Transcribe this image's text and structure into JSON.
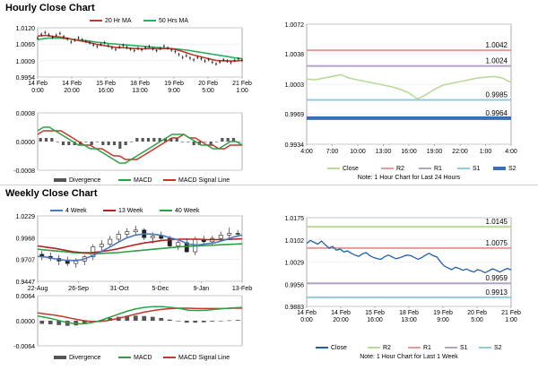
{
  "sections": {
    "hourly_title": "Hourly Close Chart",
    "weekly_title": "Weekly Close Chart"
  },
  "colors": {
    "ma20": "#c0392b",
    "ma50": "#27ae60",
    "w4": "#4a78c2",
    "w13": "#b22222",
    "w40": "#2e9e44",
    "macd": "#2ea043",
    "signal": "#c0392b",
    "divergence": "#555555",
    "close": "#b9d99a",
    "close_weekly": "#1f5fa8",
    "r2": "#e69c9c",
    "r1": "#b5a2c8",
    "s1": "#92cbe0",
    "s2": "#3a70b3"
  },
  "chart_data": [
    {
      "id": "hourly_price",
      "type": "line",
      "title": "",
      "legend": [
        "20 Hr MA",
        "50 Hrs MA"
      ],
      "yticks": [
        "1.0120",
        "1.0065",
        "1.0009",
        "0.9954"
      ],
      "yrange": [
        0.9954,
        1.012
      ],
      "xticks": [
        [
          "14 Feb",
          "0:00"
        ],
        [
          "14 Feb",
          "20:00"
        ],
        [
          "15 Feb",
          "16:00"
        ],
        [
          "18 Feb",
          "13:00"
        ],
        [
          "19 Feb",
          "9:00"
        ],
        [
          "20 Feb",
          "5:00"
        ],
        [
          "21 Feb",
          "1:00"
        ]
      ],
      "price": [
        1.0085,
        1.0098,
        1.0104,
        1.0096,
        1.0088,
        1.0095,
        1.0101,
        1.009,
        1.0082,
        1.0072,
        1.0078,
        1.0086,
        1.008,
        1.0074,
        1.0069,
        1.0062,
        1.0057,
        1.0064,
        1.007,
        1.006,
        1.0052,
        1.0047,
        1.0055,
        1.0061,
        1.0054,
        1.0048,
        1.0043,
        1.005,
        1.0046,
        1.0053,
        1.0057,
        1.0049,
        1.0043,
        1.005,
        1.0058,
        1.0052,
        1.0045,
        1.004,
        1.003,
        1.002,
        1.0026,
        1.0018,
        1.0012,
        1.002,
        1.0016,
        1.0008,
        1.0013,
        1.0004,
        0.9998,
        1.0005,
        1.0012,
        1.0008,
        1.0003,
        1.001,
        1.0015,
        1.0011
      ],
      "ma20": [
        1.0092,
        1.0093,
        1.0094,
        1.0093,
        1.0091,
        1.009,
        1.0089,
        1.0087,
        1.0085,
        1.0082,
        1.0079,
        1.0077,
        1.0075,
        1.0073,
        1.007,
        1.0067,
        1.0064,
        1.0062,
        1.006,
        1.0058,
        1.0056,
        1.0054,
        1.0053,
        1.0053,
        1.0052,
        1.0051,
        1.005,
        1.005,
        1.0049,
        1.0049,
        1.005,
        1.005,
        1.0049,
        1.0049,
        1.005,
        1.005,
        1.0049,
        1.0047,
        1.0044,
        1.004,
        1.0036,
        1.0032,
        1.0028,
        1.0025,
        1.0022,
        1.0019,
        1.0016,
        1.0013,
        1.001,
        1.0009,
        1.0009,
        1.0008,
        1.0008,
        1.0008,
        1.0009,
        1.001
      ],
      "ma50": [
        1.008,
        1.0082,
        1.0084,
        1.0085,
        1.0085,
        1.0085,
        1.0085,
        1.0084,
        1.0083,
        1.0082,
        1.008,
        1.0079,
        1.0078,
        1.0076,
        1.0075,
        1.0073,
        1.0071,
        1.007,
        1.0069,
        1.0067,
        1.0066,
        1.0065,
        1.0064,
        1.0063,
        1.0062,
        1.0061,
        1.006,
        1.0059,
        1.0058,
        1.0057,
        1.0056,
        1.0055,
        1.0054,
        1.0053,
        1.0052,
        1.0051,
        1.005,
        1.0049,
        1.0048,
        1.0046,
        1.0045,
        1.0043,
        1.0041,
        1.0039,
        1.0037,
        1.0035,
        1.0033,
        1.0031,
        1.0029,
        1.0027,
        1.0025,
        1.0023,
        1.0021,
        1.0019,
        1.0017,
        1.0016
      ]
    },
    {
      "id": "hourly_macd",
      "type": "line",
      "legend": [
        "Divergence",
        "MACD",
        "MACD Signal Line"
      ],
      "yticks": [
        "0.0008",
        "0.0000",
        "-0.0008"
      ],
      "yrange": [
        -0.0008,
        0.0008
      ],
      "macd": [
        0.0003,
        0.0004,
        0.0004,
        0.0003,
        0.0002,
        0.0001,
        0.0,
        -0.0001,
        -0.0001,
        -0.0002,
        -0.0002,
        -0.0003,
        -0.0004,
        -0.0005,
        -0.0006,
        -0.0006,
        -0.0005,
        -0.0004,
        -0.0003,
        -0.0002,
        -0.0001,
        0.0,
        0.0001,
        0.0002,
        0.0002,
        0.0002,
        0.0001,
        0.0,
        -0.0001,
        -0.0001,
        -0.0002,
        -0.0002,
        -0.0001,
        0.0,
        0.0,
        -0.0001
      ],
      "signal": [
        0.0002,
        0.0003,
        0.0003,
        0.0003,
        0.0003,
        0.0002,
        0.0001,
        0.0,
        -0.0001,
        -0.0001,
        -0.0002,
        -0.0002,
        -0.0003,
        -0.0004,
        -0.0004,
        -0.0005,
        -0.0005,
        -0.0005,
        -0.0004,
        -0.0003,
        -0.0002,
        -0.0001,
        0.0,
        0.0001,
        0.0001,
        0.0002,
        0.0001,
        0.0001,
        0.0,
        -0.0001,
        -0.0001,
        -0.0002,
        -0.0002,
        -0.0001,
        -0.0001,
        -0.0001
      ],
      "divergence": [
        0.0001,
        0.0001,
        0.0001,
        0.0,
        -0.0001,
        -0.0001,
        -0.0001,
        -0.0001,
        0.0,
        -0.0001,
        0.0,
        -0.0001,
        -0.0001,
        -0.0001,
        -0.0002,
        -0.0001,
        0.0,
        0.0001,
        0.0001,
        0.0001,
        0.0001,
        0.0001,
        0.0001,
        0.0001,
        0.0001,
        0.0,
        0.0,
        -0.0001,
        -0.0001,
        0.0,
        -0.0001,
        0.0,
        0.0001,
        0.0001,
        0.0001,
        0.0
      ]
    },
    {
      "id": "hourly_levels",
      "type": "line",
      "yticks": [
        "1.0072",
        "1.0038",
        "1.0003",
        "0.9969",
        "0.9934"
      ],
      "yrange": [
        0.9934,
        1.0072
      ],
      "xticks": [
        "4:00",
        "7:00",
        "10:00",
        "13:00",
        "16:00",
        "19:00",
        "22:00",
        "1:00",
        "4:00"
      ],
      "close": [
        1.0009,
        1.0008,
        1.001,
        1.0012,
        1.0014,
        1.001,
        1.0008,
        1.0006,
        1.0004,
        1.0002,
        1.0,
        0.9997,
        0.9993,
        0.9986,
        0.9991,
        0.9997,
        1.0002,
        1.0004,
        1.0006,
        1.0008,
        1.001,
        1.0011,
        1.0012,
        1.001,
        1.0005
      ],
      "levels": [
        {
          "name": "R2",
          "value": 1.0042,
          "label": "1.0042"
        },
        {
          "name": "R1",
          "value": 1.0024,
          "label": "1.0024"
        },
        {
          "name": "S1",
          "value": 0.9985,
          "label": "0.9985"
        },
        {
          "name": "S2",
          "value": 0.9964,
          "label": "0.9964"
        }
      ],
      "legend": [
        "Close",
        "R2",
        "R1",
        "S1",
        "S2"
      ],
      "note": "Note: 1 Hour Chart for Last 24 Hours"
    },
    {
      "id": "weekly_price",
      "type": "line",
      "legend": [
        "4 Week",
        "13 Week",
        "40 Week"
      ],
      "yticks": [
        "1.0229",
        "0.9968",
        "0.9707",
        "0.9447"
      ],
      "yrange": [
        0.9447,
        1.0229
      ],
      "xticks": [
        "22-Aug",
        "26-Sep",
        "31-Oct",
        "5-Dec",
        "9-Jan",
        "13-Feb"
      ],
      "candles": [
        [
          0.977,
          0.981,
          0.97,
          0.974
        ],
        [
          0.9745,
          0.979,
          0.969,
          0.972
        ],
        [
          0.972,
          0.976,
          0.964,
          0.969
        ],
        [
          0.97,
          0.974,
          0.963,
          0.966
        ],
        [
          0.966,
          0.972,
          0.961,
          0.969
        ],
        [
          0.969,
          0.976,
          0.964,
          0.974
        ],
        [
          0.974,
          0.989,
          0.97,
          0.986
        ],
        [
          0.986,
          0.994,
          0.981,
          0.989
        ],
        [
          0.989,
          0.999,
          0.985,
          0.995
        ],
        [
          0.995,
          1.005,
          0.991,
          1.001
        ],
        [
          1.001,
          1.008,
          0.996,
          1.004
        ],
        [
          1.004,
          1.011,
          0.999,
          1.006
        ],
        [
          1.006,
          1.008,
          0.994,
          0.997
        ],
        [
          0.997,
          1.003,
          0.99,
          0.999
        ],
        [
          0.999,
          1.004,
          0.993,
          0.996
        ],
        [
          0.996,
          0.999,
          0.985,
          0.987
        ],
        [
          0.987,
          0.993,
          0.982,
          0.991
        ],
        [
          0.991,
          0.996,
          0.979,
          0.98
        ],
        [
          0.98,
          0.998,
          0.976,
          0.995
        ],
        [
          0.995,
          0.999,
          0.988,
          0.992
        ],
        [
          0.992,
          0.999,
          0.987,
          0.996
        ],
        [
          0.996,
          1.004,
          0.993,
          1.0
        ],
        [
          1.0,
          1.009,
          0.996,
          1.002
        ],
        [
          1.002,
          1.006,
          0.998,
          1.001
        ]
      ],
      "w4": [
        0.9745,
        0.9735,
        0.9715,
        0.97,
        0.9695,
        0.9705,
        0.9745,
        0.9795,
        0.985,
        0.991,
        0.9965,
        1.0,
        1.0015,
        1.001,
        0.9995,
        0.9965,
        0.9935,
        0.989,
        0.988,
        0.9895,
        0.991,
        0.994,
        0.9975,
        1.0
      ],
      "w13": [
        0.987,
        0.9855,
        0.984,
        0.982,
        0.98,
        0.979,
        0.979,
        0.98,
        0.9815,
        0.9835,
        0.986,
        0.9885,
        0.9905,
        0.992,
        0.9935,
        0.9945,
        0.995,
        0.995,
        0.995,
        0.9945,
        0.9945,
        0.9945,
        0.995,
        0.9955
      ],
      "w40": [
        0.983,
        0.982,
        0.981,
        0.98,
        0.979,
        0.9785,
        0.978,
        0.978,
        0.9785,
        0.979,
        0.98,
        0.981,
        0.982,
        0.983,
        0.984,
        0.985,
        0.986,
        0.9865,
        0.987,
        0.9875,
        0.988,
        0.9885,
        0.989,
        0.9895
      ]
    },
    {
      "id": "weekly_macd",
      "type": "line",
      "legend": [
        "Divergence",
        "MACD",
        "MACD Signal Line"
      ],
      "yticks": [
        "0.0064",
        "0.0000",
        "-0.0064"
      ],
      "yrange": [
        -0.0064,
        0.0064
      ],
      "macd": [
        0.0012,
        0.0008,
        0.0003,
        -0.0003,
        -0.0007,
        -0.0008,
        -0.0005,
        0.0,
        0.0008,
        0.0016,
        0.0024,
        0.003,
        0.0034,
        0.0036,
        0.0036,
        0.0034,
        0.0031,
        0.0027,
        0.0026,
        0.0027,
        0.0029,
        0.0031,
        0.0033,
        0.0034
      ],
      "signal": [
        0.002,
        0.0017,
        0.0014,
        0.001,
        0.0005,
        0.0001,
        -0.0002,
        -0.0002,
        0.0001,
        0.0006,
        0.0011,
        0.0017,
        0.0022,
        0.0026,
        0.0029,
        0.0031,
        0.0032,
        0.0032,
        0.0031,
        0.0031,
        0.0031,
        0.0031,
        0.0032,
        0.0032
      ],
      "divergence": [
        -0.0008,
        -0.0009,
        -0.0011,
        -0.0013,
        -0.0012,
        -0.0009,
        -0.0003,
        0.0002,
        0.0007,
        0.001,
        0.0013,
        0.0013,
        0.0012,
        0.001,
        0.0007,
        0.0003,
        -0.0001,
        -0.0005,
        -0.0005,
        -0.0004,
        -0.0002,
        0.0,
        0.0001,
        0.0002
      ]
    },
    {
      "id": "weekly_levels",
      "type": "line",
      "yticks": [
        "1.0175",
        "1.0102",
        "1.0029",
        "0.9956",
        "0.9883"
      ],
      "yrange": [
        0.9883,
        1.0175
      ],
      "xticks": [
        [
          "14 Feb",
          "0:00"
        ],
        [
          "14 Feb",
          "20:00"
        ],
        [
          "15 Feb",
          "16:00"
        ],
        [
          "18 Feb",
          "13:00"
        ],
        [
          "19 Feb",
          "9:00"
        ],
        [
          "20 Feb",
          "5:00"
        ],
        [
          "21 Feb",
          "1:00"
        ]
      ],
      "close": [
        1.009,
        1.01,
        1.0094,
        1.0088,
        1.0098,
        1.0086,
        1.0075,
        1.008,
        1.0068,
        1.0072,
        1.0062,
        1.0066,
        1.0058,
        1.0052,
        1.0048,
        1.0056,
        1.006,
        1.005,
        1.0044,
        1.004,
        1.0038,
        1.0047,
        1.0052,
        1.0046,
        1.004,
        1.0043,
        1.0048,
        1.0052,
        1.005,
        1.0044,
        1.0038,
        1.0044,
        1.0052,
        1.0058,
        1.005,
        1.0046,
        1.003,
        1.0016,
        1.001,
        1.0004,
        1.0012,
        1.0008,
        1.0002,
        1.0006,
        1.0,
        0.9996,
        1.0004,
        1.0,
        0.9994,
        1.0,
        1.0007,
        1.0002,
        0.9996,
        1.0003,
        1.0008,
        1.0003
      ],
      "levels": [
        {
          "name": "R2",
          "value": 1.0145,
          "label": "1.0145"
        },
        {
          "name": "R1",
          "value": 1.0075,
          "label": "1.0075"
        },
        {
          "name": "S1",
          "value": 0.9959,
          "label": "0.9959"
        },
        {
          "name": "S2",
          "value": 0.9913,
          "label": "0.9913"
        }
      ],
      "legend": [
        "Close",
        "R2",
        "R1",
        "S1",
        "S2"
      ],
      "note": "Note: 1 Hour Chart for Last 1 Week"
    }
  ]
}
